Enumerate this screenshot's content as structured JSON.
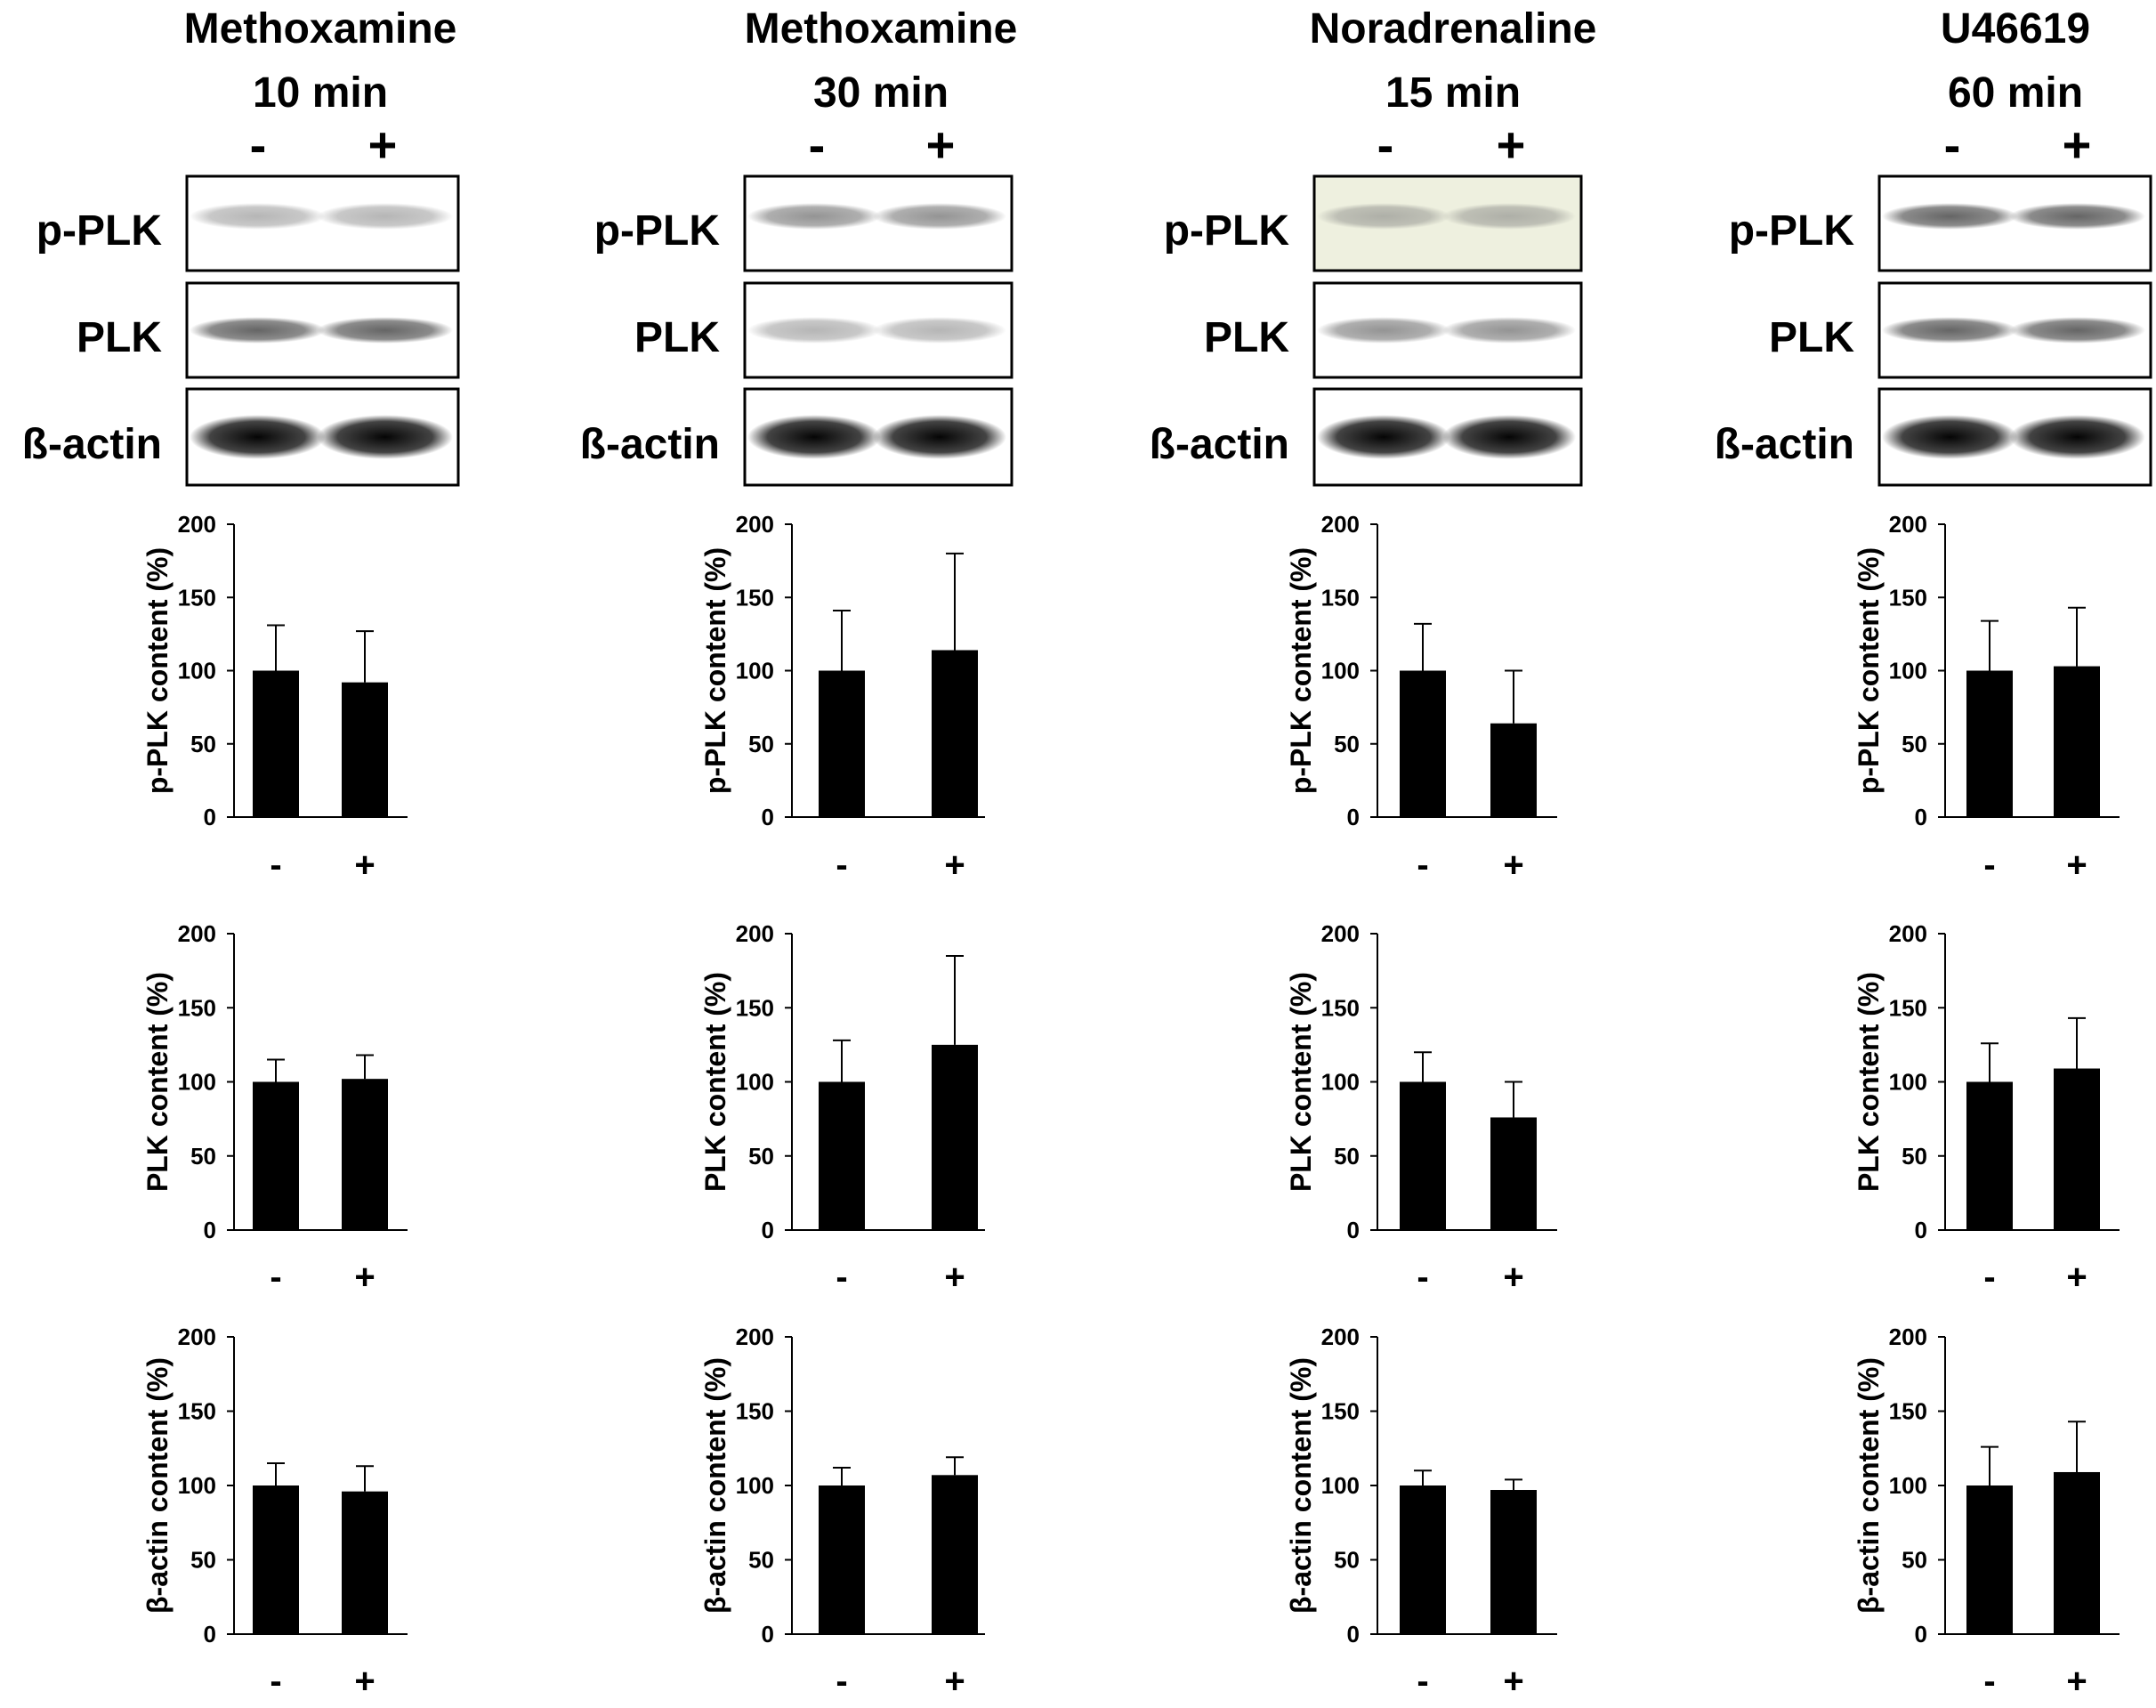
{
  "panels": [
    {
      "title_line1": "Methoxamine",
      "title_line2": "10 min",
      "lane_labels": [
        "-",
        "+"
      ],
      "blot_labels": [
        "p-PLK",
        "PLK",
        "ß-actin"
      ],
      "blots": [
        {
          "band": "faint",
          "tint": "#ffffff"
        },
        {
          "band": "medium",
          "tint": "#ffffff"
        },
        {
          "band": "dark",
          "tint": "#ffffff"
        }
      ]
    },
    {
      "title_line1": "Methoxamine",
      "title_line2": "30 min",
      "lane_labels": [
        "-",
        "+"
      ],
      "blot_labels": [
        "p-PLK",
        "PLK",
        "ß-actin"
      ],
      "blots": [
        {
          "band": "light",
          "tint": "#ffffff"
        },
        {
          "band": "faint",
          "tint": "#ffffff"
        },
        {
          "band": "dark",
          "tint": "#ffffff"
        }
      ]
    },
    {
      "title_line1": "Noradrenaline",
      "title_line2": "15 min",
      "lane_labels": [
        "-",
        "+"
      ],
      "blot_labels": [
        "p-PLK",
        "PLK",
        "ß-actin"
      ],
      "blots": [
        {
          "band": "faint",
          "tint": "#eef0df"
        },
        {
          "band": "light",
          "tint": "#ffffff"
        },
        {
          "band": "dark",
          "tint": "#ffffff"
        }
      ]
    },
    {
      "title_line1": "U46619",
      "title_line2": "60 min",
      "lane_labels": [
        "-",
        "+"
      ],
      "blot_labels": [
        "p-PLK",
        "PLK",
        "ß-actin"
      ],
      "blots": [
        {
          "band": "medium",
          "tint": "#ffffff"
        },
        {
          "band": "medium",
          "tint": "#ffffff"
        },
        {
          "band": "dark",
          "tint": "#ffffff"
        }
      ]
    }
  ],
  "chart_data": [
    {
      "type": "bar",
      "panel": "Methoxamine 10 min",
      "ylabel": "p-PLK content (%)",
      "categories": [
        "-",
        "+"
      ],
      "values": [
        100,
        92
      ],
      "errors": [
        31,
        35
      ],
      "ylim": [
        0,
        200
      ],
      "yticks": [
        0,
        50,
        100,
        150,
        200
      ]
    },
    {
      "type": "bar",
      "panel": "Methoxamine 30 min",
      "ylabel": "p-PLK content (%)",
      "categories": [
        "-",
        "+"
      ],
      "values": [
        100,
        114
      ],
      "errors": [
        41,
        66
      ],
      "ylim": [
        0,
        200
      ],
      "yticks": [
        0,
        50,
        100,
        150,
        200
      ]
    },
    {
      "type": "bar",
      "panel": "Noradrenaline 15 min",
      "ylabel": "p-PLK content (%)",
      "categories": [
        "-",
        "+"
      ],
      "values": [
        100,
        64
      ],
      "errors": [
        32,
        36
      ],
      "ylim": [
        0,
        200
      ],
      "yticks": [
        0,
        50,
        100,
        150,
        200
      ]
    },
    {
      "type": "bar",
      "panel": "U46619 60 min",
      "ylabel": "p-PLK content (%)",
      "categories": [
        "-",
        "+"
      ],
      "values": [
        100,
        103
      ],
      "errors": [
        34,
        40
      ],
      "ylim": [
        0,
        200
      ],
      "yticks": [
        0,
        50,
        100,
        150,
        200
      ]
    },
    {
      "type": "bar",
      "panel": "Methoxamine 10 min",
      "ylabel": "PLK content (%)",
      "categories": [
        "-",
        "+"
      ],
      "values": [
        100,
        102
      ],
      "errors": [
        15,
        16
      ],
      "ylim": [
        0,
        200
      ],
      "yticks": [
        0,
        50,
        100,
        150,
        200
      ]
    },
    {
      "type": "bar",
      "panel": "Methoxamine 30 min",
      "ylabel": "PLK content (%)",
      "categories": [
        "-",
        "+"
      ],
      "values": [
        100,
        125
      ],
      "errors": [
        28,
        60
      ],
      "ylim": [
        0,
        200
      ],
      "yticks": [
        0,
        50,
        100,
        150,
        200
      ]
    },
    {
      "type": "bar",
      "panel": "Noradrenaline 15 min",
      "ylabel": "PLK content (%)",
      "categories": [
        "-",
        "+"
      ],
      "values": [
        100,
        76
      ],
      "errors": [
        20,
        24
      ],
      "ylim": [
        0,
        200
      ],
      "yticks": [
        0,
        50,
        100,
        150,
        200
      ]
    },
    {
      "type": "bar",
      "panel": "U46619 60 min",
      "ylabel": "PLK content (%)",
      "categories": [
        "-",
        "+"
      ],
      "values": [
        100,
        109
      ],
      "errors": [
        26,
        34
      ],
      "ylim": [
        0,
        200
      ],
      "yticks": [
        0,
        50,
        100,
        150,
        200
      ]
    },
    {
      "type": "bar",
      "panel": "Methoxamine 10 min",
      "ylabel": "β-actin content (%)",
      "categories": [
        "-",
        "+"
      ],
      "values": [
        100,
        96
      ],
      "errors": [
        15,
        17
      ],
      "ylim": [
        0,
        200
      ],
      "yticks": [
        0,
        50,
        100,
        150,
        200
      ]
    },
    {
      "type": "bar",
      "panel": "Methoxamine 30 min",
      "ylabel": "β-actin content (%)",
      "categories": [
        "-",
        "+"
      ],
      "values": [
        100,
        107
      ],
      "errors": [
        12,
        12
      ],
      "ylim": [
        0,
        200
      ],
      "yticks": [
        0,
        50,
        100,
        150,
        200
      ]
    },
    {
      "type": "bar",
      "panel": "Noradrenaline 15 min",
      "ylabel": "β-actin content (%)",
      "categories": [
        "-",
        "+"
      ],
      "values": [
        100,
        97
      ],
      "errors": [
        10,
        7
      ],
      "ylim": [
        0,
        200
      ],
      "yticks": [
        0,
        50,
        100,
        150,
        200
      ]
    },
    {
      "type": "bar",
      "panel": "U46619 60 min",
      "ylabel": "β-actin content (%)",
      "categories": [
        "-",
        "+"
      ],
      "values": [
        100,
        109
      ],
      "errors": [
        26,
        34
      ],
      "ylim": [
        0,
        200
      ],
      "yticks": [
        0,
        50,
        100,
        150,
        200
      ]
    }
  ]
}
